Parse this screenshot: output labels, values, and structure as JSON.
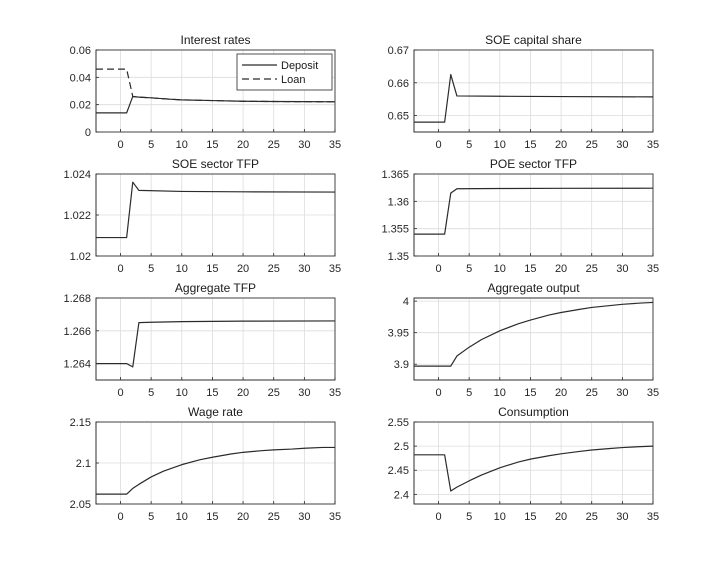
{
  "figure": {
    "background": "#ffffff",
    "line_color": "#2b2b2b",
    "grid_color": "#dcdcdc"
  },
  "chart_data": [
    {
      "type": "line",
      "title": "Interest rates",
      "xlim": [
        -4,
        35
      ],
      "ylim": [
        0,
        0.06
      ],
      "xticks": [
        0,
        5,
        10,
        15,
        20,
        25,
        30,
        35
      ],
      "yticks": [
        0,
        0.02,
        0.04,
        0.06
      ],
      "ytick_labels": [
        "0",
        "0.02",
        "0.04",
        "0.06"
      ],
      "grid": true,
      "legend": "top-right",
      "series": [
        {
          "name": "Deposit",
          "style": "solid",
          "points": [
            [
              -4,
              0.014
            ],
            [
              1,
              0.014
            ],
            [
              2,
              0.026
            ],
            [
              3,
              0.0255
            ],
            [
              5,
              0.025
            ],
            [
              8,
              0.024
            ],
            [
              10,
              0.0235
            ],
            [
              15,
              0.023
            ],
            [
              20,
              0.0225
            ],
            [
              25,
              0.0223
            ],
            [
              30,
              0.0222
            ],
            [
              35,
              0.0221
            ]
          ]
        },
        {
          "name": "Loan",
          "style": "dashed",
          "points": [
            [
              -4,
              0.046
            ],
            [
              1,
              0.046
            ],
            [
              2,
              0.026
            ],
            [
              3,
              0.0255
            ],
            [
              5,
              0.025
            ],
            [
              8,
              0.024
            ],
            [
              10,
              0.0235
            ],
            [
              15,
              0.023
            ],
            [
              20,
              0.0225
            ],
            [
              25,
              0.0223
            ],
            [
              30,
              0.0222
            ],
            [
              35,
              0.0221
            ]
          ]
        }
      ]
    },
    {
      "type": "line",
      "title": "SOE capital share",
      "xlim": [
        -4,
        35
      ],
      "ylim": [
        0.645,
        0.67
      ],
      "xticks": [
        0,
        5,
        10,
        15,
        20,
        25,
        30,
        35
      ],
      "yticks": [
        0.65,
        0.66,
        0.67
      ],
      "ytick_labels": [
        "0.65",
        "0.66",
        "0.67"
      ],
      "grid": true,
      "series": [
        {
          "style": "solid",
          "points": [
            [
              -4,
              0.648
            ],
            [
              1,
              0.648
            ],
            [
              2,
              0.6625
            ],
            [
              3,
              0.656
            ],
            [
              10,
              0.6559
            ],
            [
              20,
              0.6558
            ],
            [
              35,
              0.6557
            ]
          ]
        }
      ]
    },
    {
      "type": "line",
      "title": "SOE sector TFP",
      "xlim": [
        -4,
        35
      ],
      "ylim": [
        1.02,
        1.024
      ],
      "xticks": [
        0,
        5,
        10,
        15,
        20,
        25,
        30,
        35
      ],
      "yticks": [
        1.02,
        1.022,
        1.024
      ],
      "ytick_labels": [
        "1.02",
        "1.022",
        "1.024"
      ],
      "grid": true,
      "series": [
        {
          "style": "solid",
          "points": [
            [
              -4,
              1.0209
            ],
            [
              1,
              1.0209
            ],
            [
              2,
              1.0236
            ],
            [
              3,
              1.0232
            ],
            [
              10,
              1.02315
            ],
            [
              20,
              1.02313
            ],
            [
              35,
              1.02312
            ]
          ]
        }
      ]
    },
    {
      "type": "line",
      "title": "POE sector TFP",
      "xlim": [
        -4,
        35
      ],
      "ylim": [
        1.35,
        1.365
      ],
      "xticks": [
        0,
        5,
        10,
        15,
        20,
        25,
        30,
        35
      ],
      "yticks": [
        1.35,
        1.355,
        1.36,
        1.365
      ],
      "ytick_labels": [
        "1.35",
        "1.355",
        "1.36",
        "1.365"
      ],
      "grid": true,
      "series": [
        {
          "style": "solid",
          "points": [
            [
              -4,
              1.354
            ],
            [
              1,
              1.354
            ],
            [
              2,
              1.3615
            ],
            [
              3,
              1.3623
            ],
            [
              10,
              1.36235
            ],
            [
              20,
              1.36238
            ],
            [
              35,
              1.3624
            ]
          ]
        }
      ]
    },
    {
      "type": "line",
      "title": "Aggregate TFP",
      "xlim": [
        -4,
        35
      ],
      "ylim": [
        1.263,
        1.268
      ],
      "xticks": [
        0,
        5,
        10,
        15,
        20,
        25,
        30,
        35
      ],
      "yticks": [
        1.264,
        1.266,
        1.268
      ],
      "ytick_labels": [
        "1.264",
        "1.266",
        "1.268"
      ],
      "grid": true,
      "series": [
        {
          "style": "solid",
          "points": [
            [
              -4,
              1.264
            ],
            [
              1,
              1.264
            ],
            [
              2,
              1.2638
            ],
            [
              3,
              1.2665
            ],
            [
              5,
              1.26652
            ],
            [
              10,
              1.26656
            ],
            [
              20,
              1.26659
            ],
            [
              35,
              1.2666
            ]
          ]
        }
      ]
    },
    {
      "type": "line",
      "title": "Aggregate output",
      "xlim": [
        -4,
        35
      ],
      "ylim": [
        3.875,
        4.005
      ],
      "xticks": [
        0,
        5,
        10,
        15,
        20,
        25,
        30,
        35
      ],
      "yticks": [
        3.9,
        3.95,
        4
      ],
      "ytick_labels": [
        "3.9",
        "3.95",
        "4"
      ],
      "grid": true,
      "series": [
        {
          "style": "solid",
          "points": [
            [
              -4,
              3.897
            ],
            [
              1,
              3.897
            ],
            [
              2,
              3.897
            ],
            [
              3,
              3.913
            ],
            [
              5,
              3.927
            ],
            [
              7,
              3.939
            ],
            [
              10,
              3.953
            ],
            [
              13,
              3.964
            ],
            [
              15,
              3.97
            ],
            [
              18,
              3.978
            ],
            [
              20,
              3.982
            ],
            [
              23,
              3.987
            ],
            [
              25,
              3.99
            ],
            [
              28,
              3.993
            ],
            [
              30,
              3.995
            ],
            [
              33,
              3.997
            ],
            [
              35,
              3.998
            ]
          ]
        }
      ]
    },
    {
      "type": "line",
      "title": "Wage rate",
      "xlim": [
        -4,
        35
      ],
      "ylim": [
        2.05,
        2.15
      ],
      "xticks": [
        0,
        5,
        10,
        15,
        20,
        25,
        30,
        35
      ],
      "yticks": [
        2.05,
        2.1,
        2.15
      ],
      "ytick_labels": [
        "2.05",
        "2.1",
        "2.15"
      ],
      "grid": true,
      "series": [
        {
          "style": "solid",
          "points": [
            [
              -4,
              2.062
            ],
            [
              1,
              2.062
            ],
            [
              2,
              2.069
            ],
            [
              3,
              2.074
            ],
            [
              5,
              2.083
            ],
            [
              7,
              2.09
            ],
            [
              10,
              2.098
            ],
            [
              13,
              2.104
            ],
            [
              15,
              2.107
            ],
            [
              18,
              2.111
            ],
            [
              20,
              2.113
            ],
            [
              23,
              2.115
            ],
            [
              25,
              2.116
            ],
            [
              28,
              2.117
            ],
            [
              30,
              2.118
            ],
            [
              33,
              2.119
            ],
            [
              35,
              2.119
            ]
          ]
        }
      ]
    },
    {
      "type": "line",
      "title": "Consumption",
      "xlim": [
        -4,
        35
      ],
      "ylim": [
        2.38,
        2.55
      ],
      "xticks": [
        0,
        5,
        10,
        15,
        20,
        25,
        30,
        35
      ],
      "yticks": [
        2.4,
        2.45,
        2.5,
        2.55
      ],
      "ytick_labels": [
        "2.4",
        "2.45",
        "2.5",
        "2.55"
      ],
      "grid": true,
      "series": [
        {
          "style": "solid",
          "points": [
            [
              -4,
              2.482
            ],
            [
              1,
              2.482
            ],
            [
              2,
              2.407
            ],
            [
              3,
              2.415
            ],
            [
              5,
              2.428
            ],
            [
              7,
              2.44
            ],
            [
              10,
              2.455
            ],
            [
              13,
              2.467
            ],
            [
              15,
              2.473
            ],
            [
              18,
              2.48
            ],
            [
              20,
              2.484
            ],
            [
              23,
              2.489
            ],
            [
              25,
              2.492
            ],
            [
              28,
              2.495
            ],
            [
              30,
              2.497
            ],
            [
              33,
              2.499
            ],
            [
              35,
              2.5
            ]
          ]
        }
      ]
    }
  ]
}
